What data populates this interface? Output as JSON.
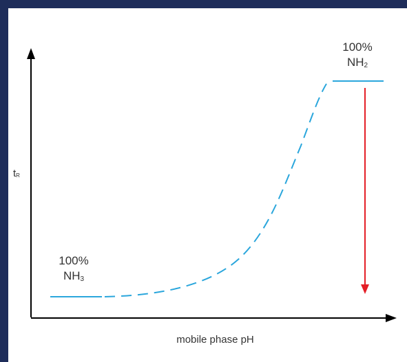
{
  "diagram": {
    "left_label": {
      "line1": "100%",
      "line2_base": "NH",
      "line2_sub": "3"
    },
    "right_label": {
      "line1": "100%",
      "line2_base": "NH",
      "line2_sub": "2"
    },
    "y_axis": {
      "base": "t",
      "sub": "R"
    },
    "x_axis": {
      "label": "mobile phase pH"
    },
    "colors": {
      "background": "#1e2d5a",
      "curve": "#2aa6dc",
      "arrow": "#e41e26",
      "axis": "#000000",
      "text": "#333333"
    }
  }
}
